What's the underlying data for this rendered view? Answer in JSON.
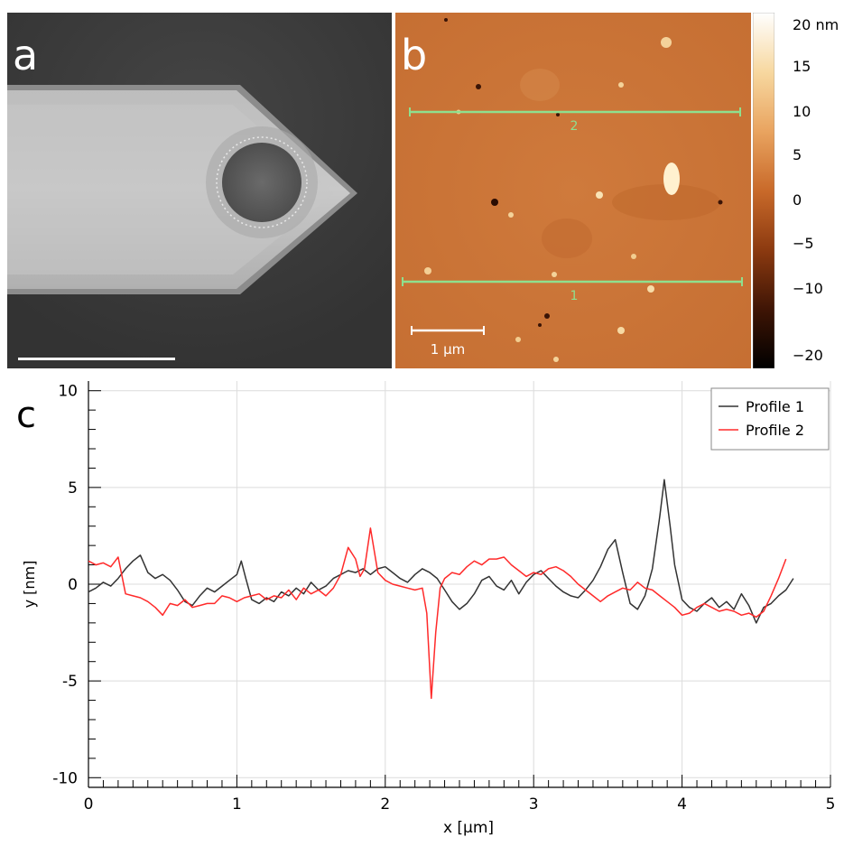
{
  "figure": {
    "panel_a": {
      "letter": "a"
    },
    "panel_b": {
      "letter": "b",
      "scalebar_label": "1 μm",
      "line_labels": [
        "2",
        "1"
      ],
      "colorbar": {
        "ticks": [
          "20 nm",
          "15",
          "10",
          "5",
          "0",
          "−5",
          "−10",
          "−20"
        ],
        "colors": [
          "#ffffff",
          "#f7d8a0",
          "#e9a460",
          "#c96a2a",
          "#8c3a10",
          "#3f1505",
          "#000000"
        ]
      }
    },
    "panel_c": {
      "letter": "c"
    }
  },
  "chart_data": {
    "type": "line",
    "xlabel": "x [μm]",
    "ylabel": "y [nm]",
    "xlim": [
      0,
      5
    ],
    "ylim": [
      -10.5,
      10.5
    ],
    "x_ticks": [
      0,
      1,
      2,
      3,
      4,
      5
    ],
    "y_ticks": [
      -10,
      -5,
      0,
      5,
      10
    ],
    "y_tick_labels": [
      "-10",
      "-5",
      "0",
      "5",
      "10"
    ],
    "grid": true,
    "legend_position": "top-right",
    "series": [
      {
        "name": "Profile 1",
        "color": "#333333",
        "x": [
          0,
          0.05,
          0.1,
          0.15,
          0.2,
          0.25,
          0.3,
          0.35,
          0.4,
          0.45,
          0.5,
          0.55,
          0.6,
          0.65,
          0.7,
          0.75,
          0.8,
          0.85,
          0.9,
          0.95,
          1.0,
          1.03,
          1.06,
          1.1,
          1.15,
          1.2,
          1.25,
          1.3,
          1.35,
          1.4,
          1.45,
          1.5,
          1.55,
          1.6,
          1.65,
          1.7,
          1.75,
          1.8,
          1.85,
          1.9,
          1.95,
          2.0,
          2.05,
          2.1,
          2.15,
          2.2,
          2.25,
          2.3,
          2.35,
          2.4,
          2.45,
          2.5,
          2.55,
          2.6,
          2.65,
          2.7,
          2.75,
          2.8,
          2.85,
          2.9,
          2.95,
          3.0,
          3.05,
          3.1,
          3.15,
          3.2,
          3.25,
          3.3,
          3.35,
          3.4,
          3.45,
          3.5,
          3.55,
          3.6,
          3.65,
          3.7,
          3.75,
          3.8,
          3.85,
          3.88,
          3.92,
          3.95,
          4.0,
          4.05,
          4.1,
          4.15,
          4.2,
          4.25,
          4.3,
          4.35,
          4.4,
          4.45,
          4.5,
          4.55,
          4.6,
          4.65,
          4.7,
          4.75
        ],
        "values": [
          -0.4,
          -0.2,
          0.1,
          -0.1,
          0.3,
          0.8,
          1.2,
          1.5,
          0.6,
          0.3,
          0.5,
          0.2,
          -0.3,
          -0.9,
          -1.1,
          -0.6,
          -0.2,
          -0.4,
          -0.1,
          0.2,
          0.5,
          1.2,
          0.3,
          -0.8,
          -1.0,
          -0.7,
          -0.9,
          -0.4,
          -0.6,
          -0.2,
          -0.5,
          0.1,
          -0.3,
          -0.1,
          0.3,
          0.5,
          0.7,
          0.6,
          0.8,
          0.5,
          0.8,
          0.9,
          0.6,
          0.3,
          0.1,
          0.5,
          0.8,
          0.6,
          0.3,
          -0.3,
          -0.9,
          -1.3,
          -1.0,
          -0.5,
          0.2,
          0.4,
          -0.1,
          -0.3,
          0.2,
          -0.5,
          0.1,
          0.5,
          0.7,
          0.3,
          -0.1,
          -0.4,
          -0.6,
          -0.7,
          -0.3,
          0.2,
          0.9,
          1.8,
          2.3,
          0.6,
          -1.0,
          -1.3,
          -0.6,
          0.8,
          3.5,
          5.4,
          3.0,
          1.0,
          -0.8,
          -1.2,
          -1.4,
          -1.0,
          -0.7,
          -1.2,
          -0.9,
          -1.3,
          -0.5,
          -1.1,
          -2.0,
          -1.2,
          -1.0,
          -0.6,
          -0.3,
          0.3
        ]
      },
      {
        "name": "Profile 2",
        "color": "#ff2a2a",
        "x": [
          0,
          0.05,
          0.1,
          0.15,
          0.18,
          0.2,
          0.25,
          0.3,
          0.35,
          0.4,
          0.45,
          0.5,
          0.55,
          0.6,
          0.65,
          0.7,
          0.75,
          0.8,
          0.85,
          0.9,
          0.95,
          1.0,
          1.05,
          1.1,
          1.15,
          1.2,
          1.25,
          1.3,
          1.35,
          1.4,
          1.45,
          1.5,
          1.55,
          1.6,
          1.65,
          1.7,
          1.75,
          1.8,
          1.83,
          1.86,
          1.9,
          1.92,
          1.95,
          2.0,
          2.05,
          2.1,
          2.15,
          2.2,
          2.25,
          2.28,
          2.31,
          2.34,
          2.37,
          2.4,
          2.45,
          2.5,
          2.55,
          2.6,
          2.65,
          2.7,
          2.75,
          2.8,
          2.85,
          2.9,
          2.95,
          3.0,
          3.05,
          3.1,
          3.15,
          3.2,
          3.25,
          3.3,
          3.35,
          3.4,
          3.45,
          3.5,
          3.55,
          3.6,
          3.65,
          3.7,
          3.75,
          3.8,
          3.85,
          3.9,
          3.95,
          4.0,
          4.05,
          4.1,
          4.15,
          4.2,
          4.25,
          4.3,
          4.35,
          4.4,
          4.45,
          4.5,
          4.55,
          4.6,
          4.65,
          4.7
        ],
        "values": [
          1.2,
          1.0,
          1.1,
          0.9,
          1.2,
          1.4,
          -0.5,
          -0.6,
          -0.7,
          -0.9,
          -1.2,
          -1.6,
          -1.0,
          -1.1,
          -0.8,
          -1.2,
          -1.1,
          -1.0,
          -1.0,
          -0.6,
          -0.7,
          -0.9,
          -0.7,
          -0.6,
          -0.5,
          -0.8,
          -0.6,
          -0.7,
          -0.3,
          -0.8,
          -0.2,
          -0.5,
          -0.3,
          -0.6,
          -0.2,
          0.5,
          1.9,
          1.3,
          0.4,
          0.8,
          2.9,
          2.0,
          0.6,
          0.2,
          0.0,
          -0.1,
          -0.2,
          -0.3,
          -0.2,
          -1.5,
          -5.9,
          -2.5,
          -0.2,
          0.3,
          0.6,
          0.5,
          0.9,
          1.2,
          1.0,
          1.3,
          1.3,
          1.4,
          1.0,
          0.7,
          0.4,
          0.6,
          0.5,
          0.8,
          0.9,
          0.7,
          0.4,
          0.0,
          -0.3,
          -0.6,
          -0.9,
          -0.6,
          -0.4,
          -0.2,
          -0.3,
          0.1,
          -0.2,
          -0.3,
          -0.6,
          -0.9,
          -1.2,
          -1.6,
          -1.5,
          -1.2,
          -1.0,
          -1.2,
          -1.4,
          -1.3,
          -1.4,
          -1.6,
          -1.5,
          -1.7,
          -1.4,
          -0.6,
          0.3,
          1.3
        ]
      }
    ]
  }
}
